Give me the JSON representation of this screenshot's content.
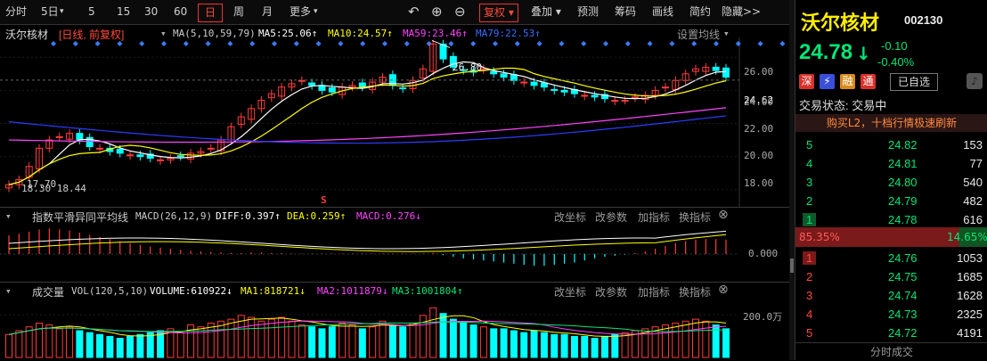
{
  "toolbar": {
    "items": [
      "分时",
      "5日",
      "5",
      "15",
      "30",
      "60",
      "日",
      "周",
      "月",
      "更多"
    ],
    "selected": "日",
    "icons": [
      "undo-icon",
      "zoom-in-icon",
      "zoom-out-icon"
    ],
    "fuquan": "复权",
    "right_items": [
      "叠加",
      "预测",
      "筹码",
      "画线",
      "简约",
      "隐藏>>"
    ]
  },
  "main_legend": {
    "name": "沃尔核材",
    "mode": "[日线, 前复权]",
    "ma_params": "MA(5,10,59,79)",
    "ma5": "MA5:25.06↑",
    "ma10": "MA10:24.57↑",
    "ma59": "MA59:23.46↑",
    "ma79": "MA79:22.53↑",
    "settings": "设置均线"
  },
  "main_axis": {
    "ticks": [
      "26.00",
      "24.00",
      "22.00",
      "20.00",
      "18.00"
    ],
    "current": "24.62"
  },
  "annotations": {
    "high": "26.80",
    "low": "17.70",
    "low2": "18.30 18.44",
    "signal": "S"
  },
  "macd": {
    "title": "指数平滑异同平均线",
    "params": "MACD(26,12,9)",
    "diff": "DIFF:0.397↑",
    "dea": "DEA:0.259↑",
    "macd": "MACD:0.276↓",
    "buttons": [
      "改坐标",
      "改参数",
      "加指标",
      "换指标"
    ],
    "zero": "0.000"
  },
  "volume": {
    "title": "成交量",
    "params": "VOL(120,5,10)",
    "vol": "VOLUME:610922↓",
    "ma1": "MA1:818721↓",
    "ma2": "MA2:1011879↓",
    "ma3": "MA3:1001804↑",
    "buttons": [
      "改坐标",
      "改参数",
      "加指标",
      "换指标"
    ],
    "tick": "200.0万"
  },
  "stock": {
    "name": "沃尔核材",
    "code": "002130",
    "price": "24.78",
    "change": "-0.10",
    "change_pct": "-0.40%",
    "tags": [
      "深",
      "⚡",
      "融",
      "通"
    ],
    "added": "已自选",
    "status": "交易状态: 交易中",
    "banner": "购买L2，十档行情极速刷新",
    "sell_ratio": "85.35%",
    "buy_ratio": "14.65%",
    "footer": "分时成交"
  },
  "sells": [
    {
      "level": "5",
      "price": "24.82",
      "vol": "153"
    },
    {
      "level": "4",
      "price": "24.81",
      "vol": "77"
    },
    {
      "level": "3",
      "price": "24.80",
      "vol": "540"
    },
    {
      "level": "2",
      "price": "24.79",
      "vol": "482"
    },
    {
      "level": "1",
      "price": "24.78",
      "vol": "616"
    }
  ],
  "buys": [
    {
      "level": "1",
      "price": "24.76",
      "vol": "1053"
    },
    {
      "level": "2",
      "price": "24.75",
      "vol": "1685"
    },
    {
      "level": "3",
      "price": "24.74",
      "vol": "1628"
    },
    {
      "level": "4",
      "price": "24.73",
      "vol": "2325"
    },
    {
      "level": "5",
      "price": "24.72",
      "vol": "4191"
    }
  ],
  "colors": {
    "up": "#ff3b3b",
    "down": "#00ffff",
    "ma5": "#ffffff",
    "ma10": "#ffff00",
    "ma59": "#ff44ff",
    "ma79": "#2c3cff",
    "accent": "#ff3b3b",
    "buy": "#00e676"
  },
  "chart_data": {
    "type": "candlestick",
    "y_range": [
      17.5,
      27.2
    ],
    "closes": [
      18.3,
      18.6,
      19.4,
      20.5,
      21.0,
      21.2,
      21.4,
      21.0,
      20.6,
      20.5,
      20.3,
      20.2,
      20.1,
      20.0,
      19.9,
      19.8,
      19.9,
      20.0,
      20.2,
      20.3,
      20.5,
      21.0,
      21.8,
      22.4,
      22.9,
      23.4,
      23.8,
      24.2,
      24.4,
      24.6,
      24.3,
      24.0,
      23.9,
      24.2,
      24.3,
      24.2,
      24.5,
      24.8,
      24.3,
      24.1,
      24.6,
      25.3,
      26.8,
      25.9,
      25.4,
      25.2,
      25.1,
      25.3,
      25.0,
      24.8,
      24.6,
      24.5,
      24.3,
      24.2,
      24.0,
      23.9,
      23.8,
      23.7,
      23.6,
      23.5,
      23.4,
      23.4,
      23.6,
      23.7,
      24.0,
      24.2,
      24.6,
      25.0,
      25.3,
      25.4,
      25.2,
      24.8
    ],
    "volumes": [
      120,
      140,
      160,
      180,
      170,
      150,
      160,
      140,
      130,
      120,
      110,
      100,
      110,
      120,
      130,
      140,
      150,
      130,
      170,
      160,
      180,
      190,
      200,
      220,
      210,
      190,
      200,
      210,
      190,
      170,
      160,
      150,
      160,
      180,
      170,
      150,
      160,
      190,
      170,
      160,
      180,
      220,
      260,
      230,
      200,
      180,
      170,
      160,
      150,
      150,
      140,
      130,
      140,
      130,
      120,
      120,
      110,
      110,
      100,
      110,
      120,
      130,
      140,
      150,
      160,
      170,
      180,
      190,
      200,
      190,
      170,
      150
    ],
    "macd": [
      0.35,
      0.38,
      0.42,
      0.46,
      0.48,
      0.46,
      0.44,
      0.4,
      0.36,
      0.32,
      0.28,
      0.24,
      0.2,
      0.17,
      0.14,
      0.12,
      0.1,
      0.08,
      0.06,
      0.05,
      0.04,
      0.03,
      0.02,
      0.02,
      0.03,
      0.03,
      0.02,
      0.02,
      0.01,
      0.01,
      0.01,
      0.01,
      0.01,
      0.01,
      0.01,
      0.01,
      0.01,
      0.01,
      0.01,
      0.01,
      0.01,
      0.01,
      0.02,
      -0.02,
      -0.05,
      -0.08,
      -0.1,
      -0.12,
      -0.14,
      -0.16,
      -0.18,
      -0.2,
      -0.22,
      -0.22,
      -0.2,
      -0.18,
      -0.16,
      -0.12,
      -0.08,
      -0.05,
      -0.03,
      -0.01,
      0.02,
      0.05,
      0.1,
      0.15,
      0.2,
      0.24,
      0.27,
      0.28,
      0.28,
      0.27
    ]
  }
}
